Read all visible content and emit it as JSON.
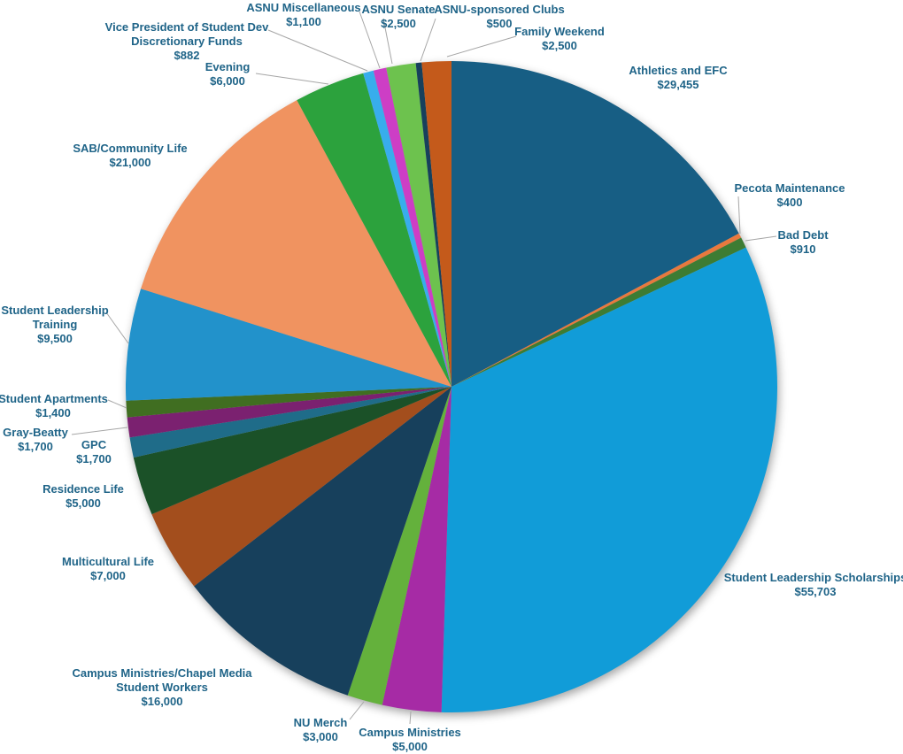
{
  "chart_data": {
    "type": "pie",
    "title": "",
    "total": 171250,
    "currency": "USD",
    "label_color": "#1F6488",
    "leader_line_color": "#A6A6A6",
    "background": "#FFFFFF",
    "layout_hints": {
      "start_angle_deg": 0,
      "direction": "clockwise",
      "labels": "outside-with-leader-lines",
      "legend": "none",
      "shadow": true
    },
    "slices": [
      {
        "label": "Athletics and EFC",
        "label_lines": [
          "Athletics and EFC"
        ],
        "value": 29455,
        "value_text": "$29,455",
        "color": "#175E84"
      },
      {
        "label": "Pecota Maintenance",
        "label_lines": [
          "Pecota Maintenance"
        ],
        "value": 400,
        "value_text": "$400",
        "color": "#E8793E"
      },
      {
        "label": "Bad Debt",
        "label_lines": [
          "Bad Debt"
        ],
        "value": 910,
        "value_text": "$910",
        "color": "#3D7C33"
      },
      {
        "label": "Student Leadership Scholarships",
        "label_lines": [
          "Student Leadership Scholarships"
        ],
        "value": 55703,
        "value_text": "$55,703",
        "color": "#119CD8"
      },
      {
        "label": "Campus Ministries",
        "label_lines": [
          "Campus Ministries"
        ],
        "value": 5000,
        "value_text": "$5,000",
        "color": "#A62BA5"
      },
      {
        "label": "NU Merch",
        "label_lines": [
          "NU Merch"
        ],
        "value": 3000,
        "value_text": "$3,000",
        "color": "#64B13C"
      },
      {
        "label": "Campus Ministries/Chapel Media Student Workers",
        "label_lines": [
          "Campus Ministries/Chapel Media",
          "Student Workers"
        ],
        "value": 16000,
        "value_text": "$16,000",
        "color": "#17405C"
      },
      {
        "label": "Multicultural Life",
        "label_lines": [
          "Multicultural Life"
        ],
        "value": 7000,
        "value_text": "$7,000",
        "color": "#A34E1D"
      },
      {
        "label": "Residence Life",
        "label_lines": [
          "Residence Life"
        ],
        "value": 5000,
        "value_text": "$5,000",
        "color": "#1B5128"
      },
      {
        "label": "GPC",
        "label_lines": [
          "GPC"
        ],
        "value": 1700,
        "value_text": "$1,700",
        "color": "#1F6C89"
      },
      {
        "label": "Gray-Beatty",
        "label_lines": [
          "Gray-Beatty"
        ],
        "value": 1700,
        "value_text": "$1,700",
        "color": "#7B2170"
      },
      {
        "label": "Student Apartments",
        "label_lines": [
          "Student Apartments"
        ],
        "value": 1400,
        "value_text": "$1,400",
        "color": "#406E21"
      },
      {
        "label": "Student Leadership Training",
        "label_lines": [
          "Student Leadership",
          "Training"
        ],
        "value": 9500,
        "value_text": "$9,500",
        "color": "#2292CB"
      },
      {
        "label": "SAB/Community Life",
        "label_lines": [
          "SAB/Community Life"
        ],
        "value": 21000,
        "value_text": "$21,000",
        "color": "#F09360"
      },
      {
        "label": "Evening",
        "label_lines": [
          "Evening"
        ],
        "value": 6000,
        "value_text": "$6,000",
        "color": "#2CA23D"
      },
      {
        "label": "Vice President of Student Dev Discretionary Funds",
        "label_lines": [
          "Vice President of Student Dev",
          "Discretionary Funds"
        ],
        "value": 882,
        "value_text": "$882",
        "color": "#38ADEC"
      },
      {
        "label": "ASNU Miscellaneous",
        "label_lines": [
          "ASNU Miscellaneous"
        ],
        "value": 1100,
        "value_text": "$1,100",
        "color": "#CD3EC5"
      },
      {
        "label": "ASNU Senate",
        "label_lines": [
          "ASNU Senate"
        ],
        "value": 2500,
        "value_text": "$2,500",
        "color": "#6DC24E"
      },
      {
        "label": "ASNU-sponsored Clubs",
        "label_lines": [
          "ASNU-sponsored Clubs"
        ],
        "value": 500,
        "value_text": "$500",
        "color": "#17405C"
      },
      {
        "label": "Family Weekend",
        "label_lines": [
          "Family Weekend"
        ],
        "value": 2500,
        "value_text": "$2,500",
        "color": "#C45A1B"
      }
    ]
  }
}
